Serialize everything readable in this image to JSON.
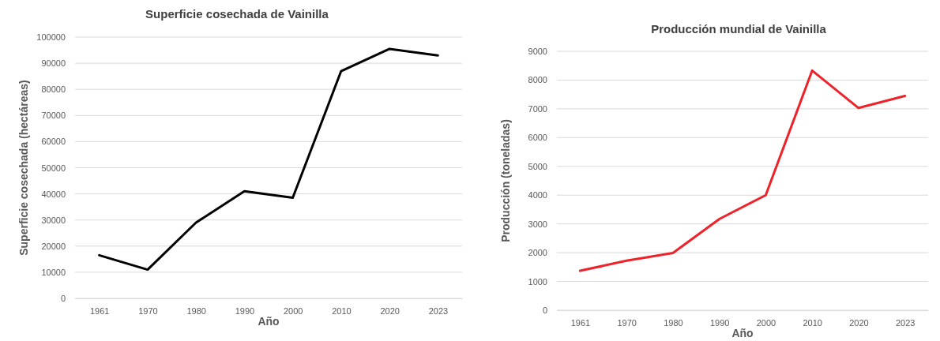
{
  "chart_data": [
    {
      "type": "line",
      "title": "Superficie cosechada de Vainilla",
      "xlabel": "Año",
      "ylabel": "Superficie cosechada  (hectáreas)",
      "categories": [
        "1961",
        "1970",
        "1980",
        "1990",
        "2000",
        "2010",
        "2020",
        "2023"
      ],
      "series": [
        {
          "color": "#000000",
          "values": [
            16500,
            11000,
            29000,
            41000,
            38500,
            87000,
            95500,
            93000
          ]
        }
      ],
      "ylim": [
        0,
        100000
      ],
      "yticks": [
        0,
        10000,
        20000,
        30000,
        40000,
        50000,
        60000,
        70000,
        80000,
        90000,
        100000
      ],
      "grid": "y",
      "marker": "none",
      "line_style": "solid"
    },
    {
      "type": "line",
      "title": "Producción mundial de Vainilla",
      "xlabel": "Año",
      "ylabel": "Producción (toneladas)",
      "categories": [
        "1961",
        "1970",
        "1980",
        "1990",
        "2000",
        "2010",
        "2020",
        "2023"
      ],
      "series": [
        {
          "color": "#ee2229",
          "values": [
            1370,
            1720,
            1990,
            3170,
            4000,
            8330,
            7030,
            7450
          ]
        }
      ],
      "ylim": [
        0,
        9000
      ],
      "yticks": [
        0,
        1000,
        2000,
        3000,
        4000,
        5000,
        6000,
        7000,
        8000,
        9000
      ],
      "grid": "y",
      "marker": "none",
      "line_style": "solid"
    }
  ]
}
